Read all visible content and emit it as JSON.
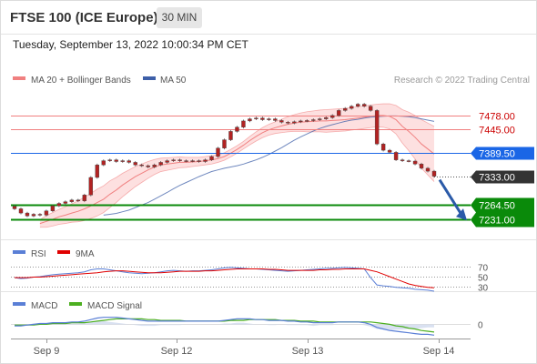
{
  "header": {
    "instrument": "FTSE 100 (ICE Europe)",
    "timeframe": "30 MIN",
    "datetime": "Tuesday, September 13, 2022 10:00:34 PM CET"
  },
  "credit": "Research © 2022 Trading Central",
  "colors": {
    "bollinger": "#f08080",
    "bollinger_fill": "#fde0e0",
    "ma50": "#3d5fa8",
    "candle": "#b22222",
    "red_label": "#cc0000",
    "blue_level": "#1a66e6",
    "green_level": "#0a8a0a",
    "dark_label": "#333333",
    "rsi": "#5a7fd6",
    "rsi_ma": "#e00000",
    "macd": "#5a7fd6",
    "macd_signal": "#4caf20"
  },
  "chart_data": [
    {
      "type": "candlestick",
      "legend": [
        {
          "name": "MA 20 + Bollinger Bands",
          "color": "#f08080"
        },
        {
          "name": "MA 50",
          "color": "#3d5fa8"
        }
      ],
      "x_ticks": [
        "Sep 9",
        "Sep 12",
        "Sep 13",
        "Sep 14"
      ],
      "ylim": [
        7193,
        7530
      ],
      "levels": [
        {
          "value": 7478.0,
          "label": "7478.00",
          "style": "red-line"
        },
        {
          "value": 7445.0,
          "label": "7445.00",
          "style": "red-line"
        },
        {
          "value": 7389.5,
          "label": "7389.50",
          "style": "blue-box"
        },
        {
          "value": 7333.0,
          "label": "7333.00",
          "style": "dark-box"
        },
        {
          "value": 7264.5,
          "label": "7264.50",
          "style": "green-box"
        },
        {
          "value": 7231.0,
          "label": "7231.00",
          "style": "green-box"
        }
      ],
      "close": [
        7255,
        7245,
        7238,
        7242,
        7240,
        7250,
        7262,
        7268,
        7272,
        7276,
        7274,
        7288,
        7330,
        7360,
        7370,
        7372,
        7368,
        7370,
        7366,
        7360,
        7358,
        7355,
        7360,
        7366,
        7370,
        7372,
        7370,
        7369,
        7370,
        7368,
        7372,
        7380,
        7400,
        7420,
        7440,
        7450,
        7465,
        7470,
        7472,
        7468,
        7470,
        7466,
        7462,
        7460,
        7463,
        7465,
        7466,
        7468,
        7470,
        7473,
        7478,
        7490,
        7495,
        7500,
        7505,
        7500,
        7490,
        7410,
        7395,
        7390,
        7372,
        7370,
        7369,
        7362,
        7352,
        7345,
        7333
      ],
      "ma20": [
        7220,
        7225,
        7230,
        7236,
        7240,
        7245,
        7249,
        7255,
        7262,
        7270,
        7278,
        7290,
        7300,
        7312,
        7322,
        7332,
        7340,
        7348,
        7355,
        7360,
        7362,
        7364,
        7366,
        7366,
        7367,
        7368,
        7370,
        7372,
        7375,
        7380,
        7388,
        7397,
        7407,
        7418,
        7428,
        7437,
        7444,
        7449,
        7453,
        7457,
        7460,
        7462,
        7463,
        7464,
        7465,
        7465,
        7466,
        7467,
        7468,
        7470,
        7472,
        7474,
        7476,
        7478,
        7478,
        7476,
        7468,
        7452,
        7440,
        7426,
        7410,
        7398,
        7386
      ],
      "ma50": [
        7240,
        7242,
        7244,
        7248,
        7252,
        7258,
        7264,
        7270,
        7278,
        7286,
        7294,
        7303,
        7311,
        7318,
        7325,
        7332,
        7338,
        7344,
        7348,
        7352,
        7355,
        7358,
        7362,
        7367,
        7372,
        7378,
        7385,
        7393,
        7401,
        7410,
        7419,
        7427,
        7434,
        7441,
        7447,
        7452,
        7456,
        7460,
        7464,
        7467,
        7469,
        7472,
        7474,
        7475,
        7476,
        7477,
        7477,
        7476,
        7475,
        7473,
        7470,
        7467,
        7464
      ]
    },
    {
      "type": "line",
      "legend": [
        {
          "name": "RSI",
          "color": "#5a7fd6"
        },
        {
          "name": "9MA",
          "color": "#e00000"
        }
      ],
      "y_ticks": [
        70,
        50,
        30
      ],
      "ylim": [
        20,
        80
      ],
      "rsi": [
        48,
        46,
        47,
        49,
        50,
        52,
        54,
        55,
        56,
        57,
        58,
        60,
        64,
        66,
        66,
        64,
        62,
        60,
        58,
        57,
        56,
        57,
        58,
        60,
        62,
        63,
        62,
        61,
        62,
        62,
        63,
        64,
        66,
        68,
        69,
        68,
        67,
        66,
        66,
        65,
        64,
        63,
        62,
        61,
        62,
        63,
        64,
        65,
        66,
        67,
        67,
        68,
        69,
        68,
        67,
        66,
        48,
        33,
        31,
        30,
        28,
        27,
        26,
        24,
        23,
        22,
        20
      ],
      "rsi_ma": [
        48,
        48,
        48,
        49,
        49,
        50,
        51,
        52,
        53,
        54,
        55,
        56,
        57,
        58,
        60,
        61,
        62,
        62,
        61,
        60,
        59,
        58,
        58,
        58,
        59,
        60,
        61,
        61,
        61,
        61,
        62,
        62,
        63,
        64,
        65,
        66,
        66,
        66,
        66,
        66,
        65,
        65,
        64,
        63,
        63,
        63,
        63,
        63,
        64,
        64,
        65,
        65,
        66,
        66,
        66,
        66,
        63,
        60,
        55,
        50,
        45,
        40,
        35,
        32,
        30,
        28,
        27
      ]
    },
    {
      "type": "line",
      "legend": [
        {
          "name": "MACD",
          "color": "#5a7fd6"
        },
        {
          "name": "MACD Signal",
          "color": "#4caf20"
        }
      ],
      "y_ticks": [
        0
      ],
      "ylim": [
        -16,
        18
      ],
      "macd": [
        -2,
        -2,
        -1,
        0,
        1,
        1,
        2,
        2,
        2,
        3,
        3,
        4,
        6,
        8,
        9,
        9,
        9,
        8,
        7,
        6,
        5,
        4,
        4,
        4,
        4,
        4,
        4,
        4,
        4,
        4,
        4,
        4,
        4,
        5,
        6,
        7,
        7,
        7,
        6,
        6,
        5,
        5,
        5,
        4,
        4,
        3,
        3,
        2,
        2,
        2,
        2,
        3,
        3,
        3,
        3,
        2,
        0,
        -4,
        -6,
        -8,
        -9,
        -10,
        -11,
        -12,
        -13,
        -13,
        -14
      ],
      "signal": [
        -1,
        -1,
        -1,
        -1,
        0,
        0,
        1,
        1,
        1,
        2,
        2,
        2,
        3,
        4,
        5,
        6,
        7,
        7,
        7,
        7,
        7,
        6,
        6,
        5,
        5,
        5,
        5,
        4,
        4,
        4,
        4,
        4,
        4,
        4,
        5,
        5,
        5,
        6,
        6,
        6,
        6,
        6,
        5,
        5,
        5,
        4,
        4,
        4,
        3,
        3,
        3,
        3,
        3,
        3,
        3,
        3,
        3,
        2,
        1,
        0,
        -2,
        -3,
        -5,
        -6,
        -8,
        -9,
        -10
      ]
    }
  ]
}
